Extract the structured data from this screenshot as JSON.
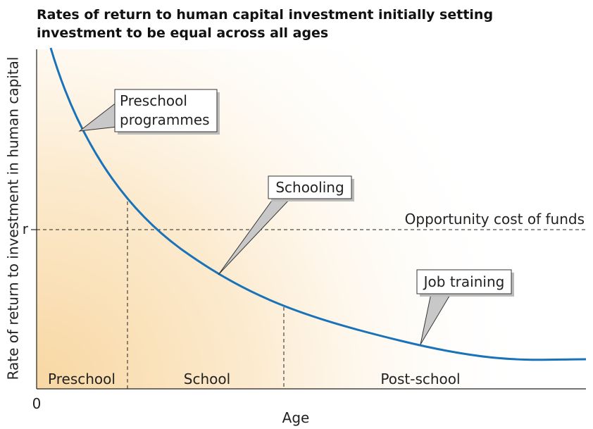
{
  "header": {
    "title_lines": [
      "Rates of return to human capital investment initially setting",
      "investment to be equal across all ages"
    ]
  },
  "axes": {
    "y_label": "Rate of return to investment in human capital",
    "x_label": "Age",
    "origin": "0",
    "r_label": "r"
  },
  "reference_line": {
    "label": "Opportunity cost of funds"
  },
  "regions": [
    "Preschool",
    "School",
    "Post-school"
  ],
  "callouts": {
    "preschool": [
      "Preschool",
      "programmes"
    ],
    "schooling": "Schooling",
    "job_training": "Job training"
  }
}
